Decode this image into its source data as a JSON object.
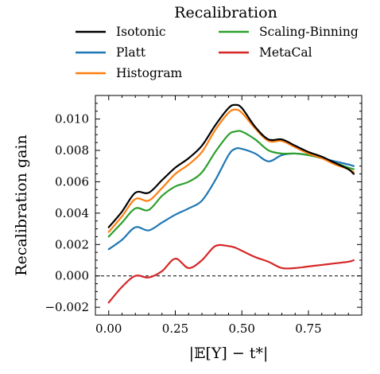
{
  "chart_data": {
    "type": "line",
    "title": "",
    "xlabel": "|𝔼[Y] − t*|",
    "ylabel": "Recalibration gain",
    "xlim": [
      -0.05,
      0.95
    ],
    "ylim": [
      -0.0025,
      0.0115
    ],
    "xticks": [
      0.0,
      0.25,
      0.5,
      0.75
    ],
    "xtick_labels": [
      "0.00",
      "0.25",
      "0.50",
      "0.75"
    ],
    "yticks": [
      -0.002,
      0.0,
      0.002,
      0.004,
      0.006,
      0.008,
      0.01
    ],
    "ytick_labels": [
      "−0.002",
      "0.000",
      "0.002",
      "0.004",
      "0.006",
      "0.008",
      "0.010"
    ],
    "grid": false,
    "reference_line": {
      "y": 0.0,
      "style": "dashed",
      "color": "#000000"
    },
    "legend": {
      "title": "Recalibration",
      "placement": "top",
      "columns": 2
    },
    "series": [
      {
        "name": "Isotonic",
        "color": "#000000",
        "x": [
          0.0,
          0.05,
          0.1,
          0.15,
          0.2,
          0.25,
          0.3,
          0.35,
          0.4,
          0.45,
          0.475,
          0.5,
          0.55,
          0.6,
          0.65,
          0.7,
          0.75,
          0.8,
          0.85,
          0.9,
          0.92
        ],
        "y": [
          0.0031,
          0.0041,
          0.0053,
          0.0053,
          0.0061,
          0.0069,
          0.0075,
          0.0083,
          0.0096,
          0.0107,
          0.0109,
          0.0107,
          0.0095,
          0.0087,
          0.0087,
          0.0083,
          0.0079,
          0.0076,
          0.0072,
          0.0068,
          0.0065
        ]
      },
      {
        "name": "Platt",
        "color": "#1f77b4",
        "x": [
          0.0,
          0.05,
          0.1,
          0.15,
          0.2,
          0.25,
          0.3,
          0.35,
          0.4,
          0.45,
          0.475,
          0.5,
          0.55,
          0.6,
          0.65,
          0.7,
          0.75,
          0.8,
          0.85,
          0.9,
          0.92
        ],
        "y": [
          0.0017,
          0.0023,
          0.0031,
          0.0029,
          0.0034,
          0.0039,
          0.0043,
          0.0048,
          0.0061,
          0.0077,
          0.0081,
          0.0081,
          0.0078,
          0.0073,
          0.0077,
          0.0078,
          0.0077,
          0.0075,
          0.0073,
          0.0071,
          0.007
        ]
      },
      {
        "name": "Histogram",
        "color": "#ff7f0e",
        "x": [
          0.0,
          0.05,
          0.1,
          0.15,
          0.2,
          0.25,
          0.3,
          0.35,
          0.4,
          0.45,
          0.475,
          0.5,
          0.55,
          0.6,
          0.65,
          0.7,
          0.75,
          0.8,
          0.85,
          0.9,
          0.92
        ],
        "y": [
          0.0028,
          0.0038,
          0.0049,
          0.0048,
          0.0056,
          0.0065,
          0.0071,
          0.0079,
          0.0093,
          0.0104,
          0.0106,
          0.0104,
          0.0094,
          0.0086,
          0.0086,
          0.0082,
          0.0078,
          0.0075,
          0.0071,
          0.0068,
          0.0066
        ]
      },
      {
        "name": "Scaling-Binning",
        "color": "#2ca02c",
        "x": [
          0.0,
          0.05,
          0.1,
          0.15,
          0.2,
          0.25,
          0.3,
          0.35,
          0.4,
          0.45,
          0.475,
          0.5,
          0.55,
          0.6,
          0.65,
          0.7,
          0.75,
          0.8,
          0.85,
          0.9,
          0.92
        ],
        "y": [
          0.0025,
          0.0034,
          0.0043,
          0.0042,
          0.0051,
          0.0057,
          0.006,
          0.0066,
          0.0079,
          0.009,
          0.0092,
          0.0092,
          0.0087,
          0.008,
          0.0078,
          0.0078,
          0.0077,
          0.0075,
          0.0072,
          0.0069,
          0.0068
        ]
      },
      {
        "name": "MetaCal",
        "color": "#d62728",
        "x": [
          0.0,
          0.05,
          0.1,
          0.15,
          0.2,
          0.25,
          0.3,
          0.35,
          0.4,
          0.45,
          0.475,
          0.5,
          0.55,
          0.6,
          0.65,
          0.7,
          0.75,
          0.8,
          0.85,
          0.9,
          0.92
        ],
        "y": [
          -0.0017,
          -0.0007,
          0.0,
          -0.0001,
          0.0003,
          0.0011,
          0.0005,
          0.001,
          0.0019,
          0.0019,
          0.0018,
          0.0016,
          0.0012,
          0.0009,
          0.0005,
          0.0005,
          0.0006,
          0.0007,
          0.0008,
          0.0009,
          0.001
        ]
      }
    ]
  }
}
